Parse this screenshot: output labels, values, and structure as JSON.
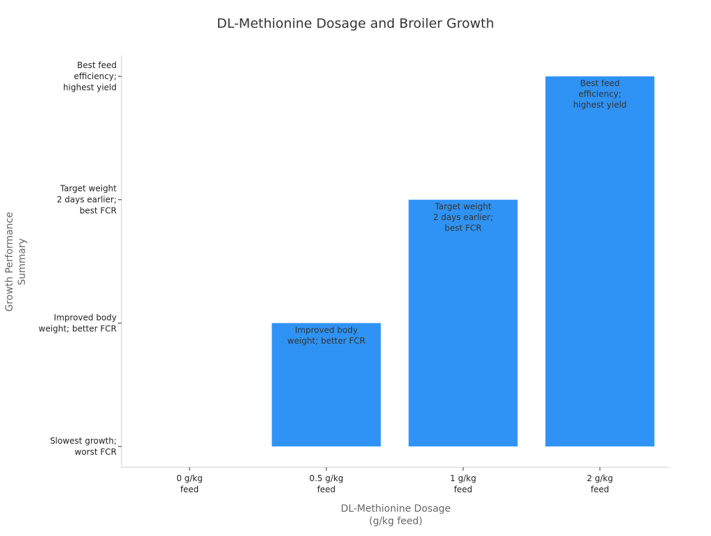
{
  "chart_data": {
    "type": "bar",
    "title": "DL-Methionine Dosage and Broiler Growth",
    "xlabel": [
      "DL-Methionine Dosage",
      "(g/kg feed)"
    ],
    "ylabel": [
      "Growth Performance",
      "Summary"
    ],
    "categories": [
      [
        "0 g/kg",
        "feed"
      ],
      [
        "0.5 g/kg",
        "feed"
      ],
      [
        "1 g/kg",
        "feed"
      ],
      [
        "2 g/kg",
        "feed"
      ]
    ],
    "values": [
      0,
      1,
      2,
      3
    ],
    "ytick_values": [
      0,
      1,
      2,
      3
    ],
    "ytick_labels": [
      [
        "Slowest growth;",
        "worst FCR"
      ],
      [
        "Improved body",
        "weight; better FCR"
      ],
      [
        "Target weight",
        "2 days earlier;",
        "best FCR"
      ],
      [
        "Best feed",
        "efficiency;",
        "highest yield"
      ]
    ],
    "data_labels": [
      [],
      [
        "Improved body",
        "weight; better FCR"
      ],
      [
        "Target weight",
        "2 days earlier;",
        "best FCR"
      ],
      [
        "Best feed",
        "efficiency;",
        "highest yield"
      ]
    ],
    "ylim": [
      -0.17,
      3.17
    ],
    "grid": false,
    "bar_color": "#2f93f5",
    "text_color": "#333333",
    "axis_label_color": "#666666"
  }
}
